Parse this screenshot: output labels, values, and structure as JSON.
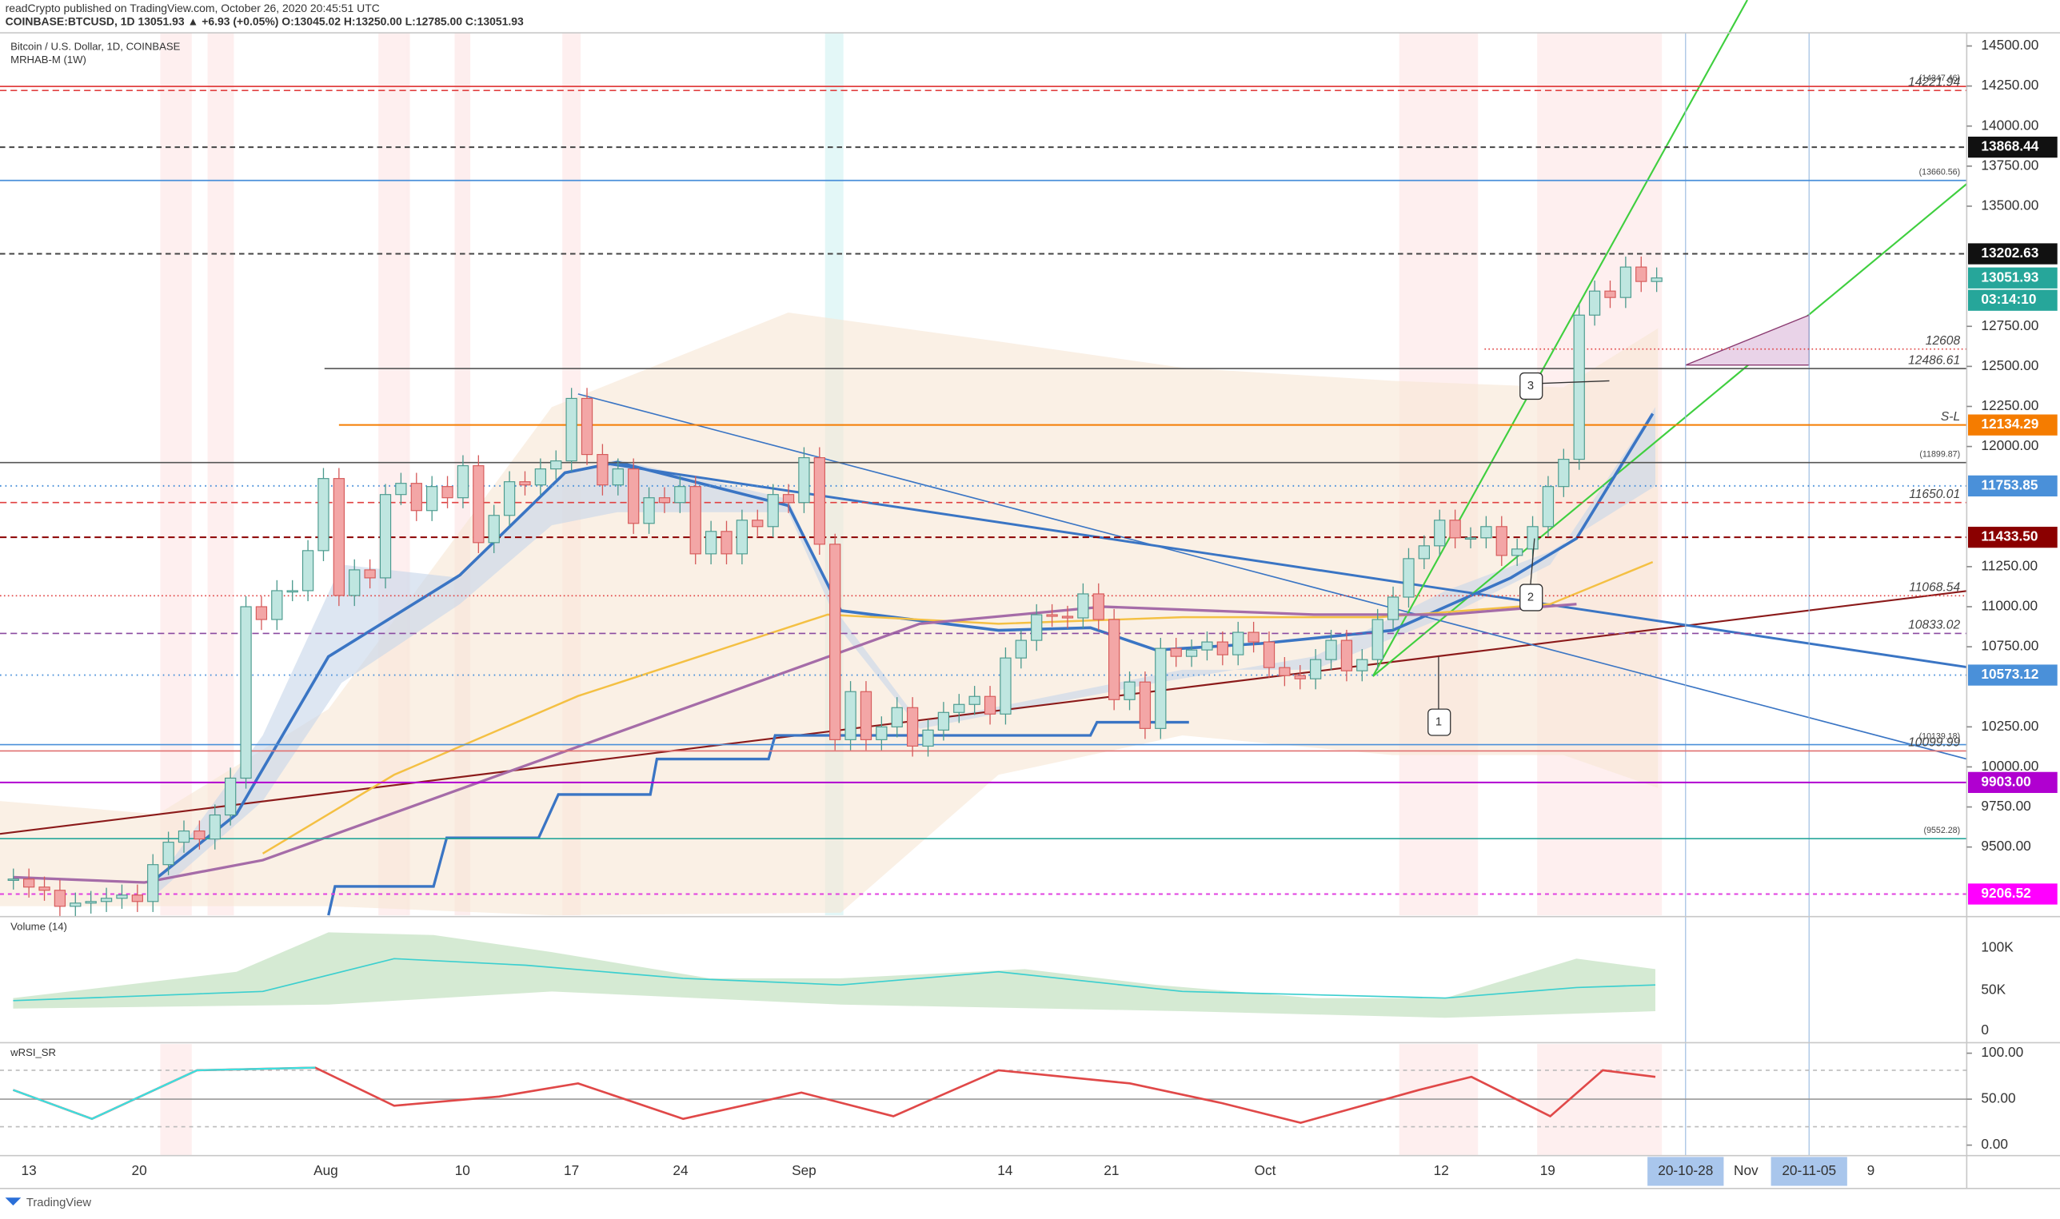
{
  "header": {
    "published": "readCrypto published on TradingView.com, October 26, 2020 20:45:51 UTC",
    "quote": "COINBASE:BTCUSD, 1D 13051.93 ▲ +6.93 (+0.05%) O:13045.02 H:13250.00 L:12785.00 C:13051.93"
  },
  "panes": {
    "symbol": "Bitcoin / U.S. Dollar, 1D, COINBASE",
    "indicator": "MRHAB-M (1W)",
    "volume": "Volume (14)",
    "rsi": "wRSI_SR"
  },
  "price_axis": {
    "ticks": [
      {
        "value": 14500,
        "label": "14500.00"
      },
      {
        "value": 14250,
        "label": "14250.00"
      },
      {
        "value": 14000,
        "label": "14000.00"
      },
      {
        "value": 13750,
        "label": "13750.00"
      },
      {
        "value": 13500,
        "label": "13500.00"
      },
      {
        "value": 12750,
        "label": "12750.00"
      },
      {
        "value": 12500,
        "label": "12500.00"
      },
      {
        "value": 12250,
        "label": "12250.00"
      },
      {
        "value": 12000,
        "label": "12000.00"
      },
      {
        "value": 11250,
        "label": "11250.00"
      },
      {
        "value": 11000,
        "label": "11000.00"
      },
      {
        "value": 10750,
        "label": "10750.00"
      },
      {
        "value": 10250,
        "label": "10250.00"
      },
      {
        "value": 10000,
        "label": "10000.00"
      },
      {
        "value": 9750,
        "label": "9750.00"
      },
      {
        "value": 9500,
        "label": "9500.00"
      }
    ],
    "tags": [
      {
        "value": 13868.44,
        "label": "13868.44"
      },
      {
        "value": 13202.63,
        "label": "13202.63"
      },
      {
        "value": 13051.93,
        "label": "13051.93"
      },
      {
        "value": 12134.29,
        "label": "12134.29"
      },
      {
        "value": 11753.85,
        "label": "11753.85"
      },
      {
        "value": 11433.5,
        "label": "11433.50"
      },
      {
        "value": 10573.12,
        "label": "10573.12"
      },
      {
        "value": 9903,
        "label": "9903.00"
      },
      {
        "value": 9206.52,
        "label": "9206.52"
      }
    ],
    "countdown": "03:14:10"
  },
  "levels": [
    {
      "value": 14247.46,
      "label": "(14247.46)"
    },
    14221.94,
    {
      "value": 13660.56,
      "label": "(13660.56)"
    },
    12608,
    12486.61,
    {
      "value": 12134.29,
      "label": "S-L"
    },
    {
      "value": 11899.87,
      "label": "(11899.87)"
    },
    11650.01,
    11068.54,
    10833.02,
    {
      "value": 10139.18,
      "label": "(10139.18)"
    },
    10099.99,
    {
      "value": 9552.28,
      "label": "(9552.28)"
    }
  ],
  "candles": {
    "closes": [
      9300,
      9250,
      9230,
      9130,
      9150,
      9160,
      9180,
      9200,
      9160,
      9390,
      9530,
      9600,
      9550,
      9700,
      9930,
      11000,
      10920,
      11100,
      11100,
      11350,
      11800,
      11070,
      11230,
      11180,
      11700,
      11770,
      11600,
      11750,
      11680,
      11880,
      11400,
      11570,
      11780,
      11760,
      11860,
      11910,
      12300,
      11950,
      11760,
      11860,
      11520,
      11680,
      11650,
      11750,
      11330,
      11470,
      11330,
      11540,
      11500,
      11700,
      11650,
      11930,
      11390,
      10170,
      10470,
      10170,
      10250,
      10370,
      10130,
      10230,
      10340,
      10390,
      10440,
      10330,
      10680,
      10790,
      10950,
      10940,
      10930,
      11080,
      10920,
      10420,
      10530,
      10240,
      10740,
      10690,
      10730,
      10780,
      10700,
      10840,
      10780,
      10620,
      10570,
      10550,
      10670,
      10790,
      10600,
      10670,
      10920,
      11060,
      11300,
      11380,
      11540,
      11430,
      11430,
      11500,
      11320,
      11360,
      11500,
      11750,
      11920,
      12820,
      12970,
      12930,
      13120,
      13030,
      13051.93
    ]
  },
  "volume_axis": [
    "100K",
    "50K",
    0
  ],
  "rsi_axis": [
    {
      "value": 100,
      "label": "100.00"
    },
    {
      "value": 50,
      "label": "50.00"
    },
    {
      "value": 0,
      "label": "0.00"
    }
  ],
  "time_axis": [
    "13",
    "20",
    "Aug",
    "10",
    "17",
    "24",
    "Sep",
    "14",
    "21",
    "Oct",
    "12",
    "19",
    "20-10-28",
    "Nov",
    "20-11-05",
    "9"
  ],
  "callouts": [
    "1",
    "2",
    "3"
  ],
  "footer": "TradingView"
}
